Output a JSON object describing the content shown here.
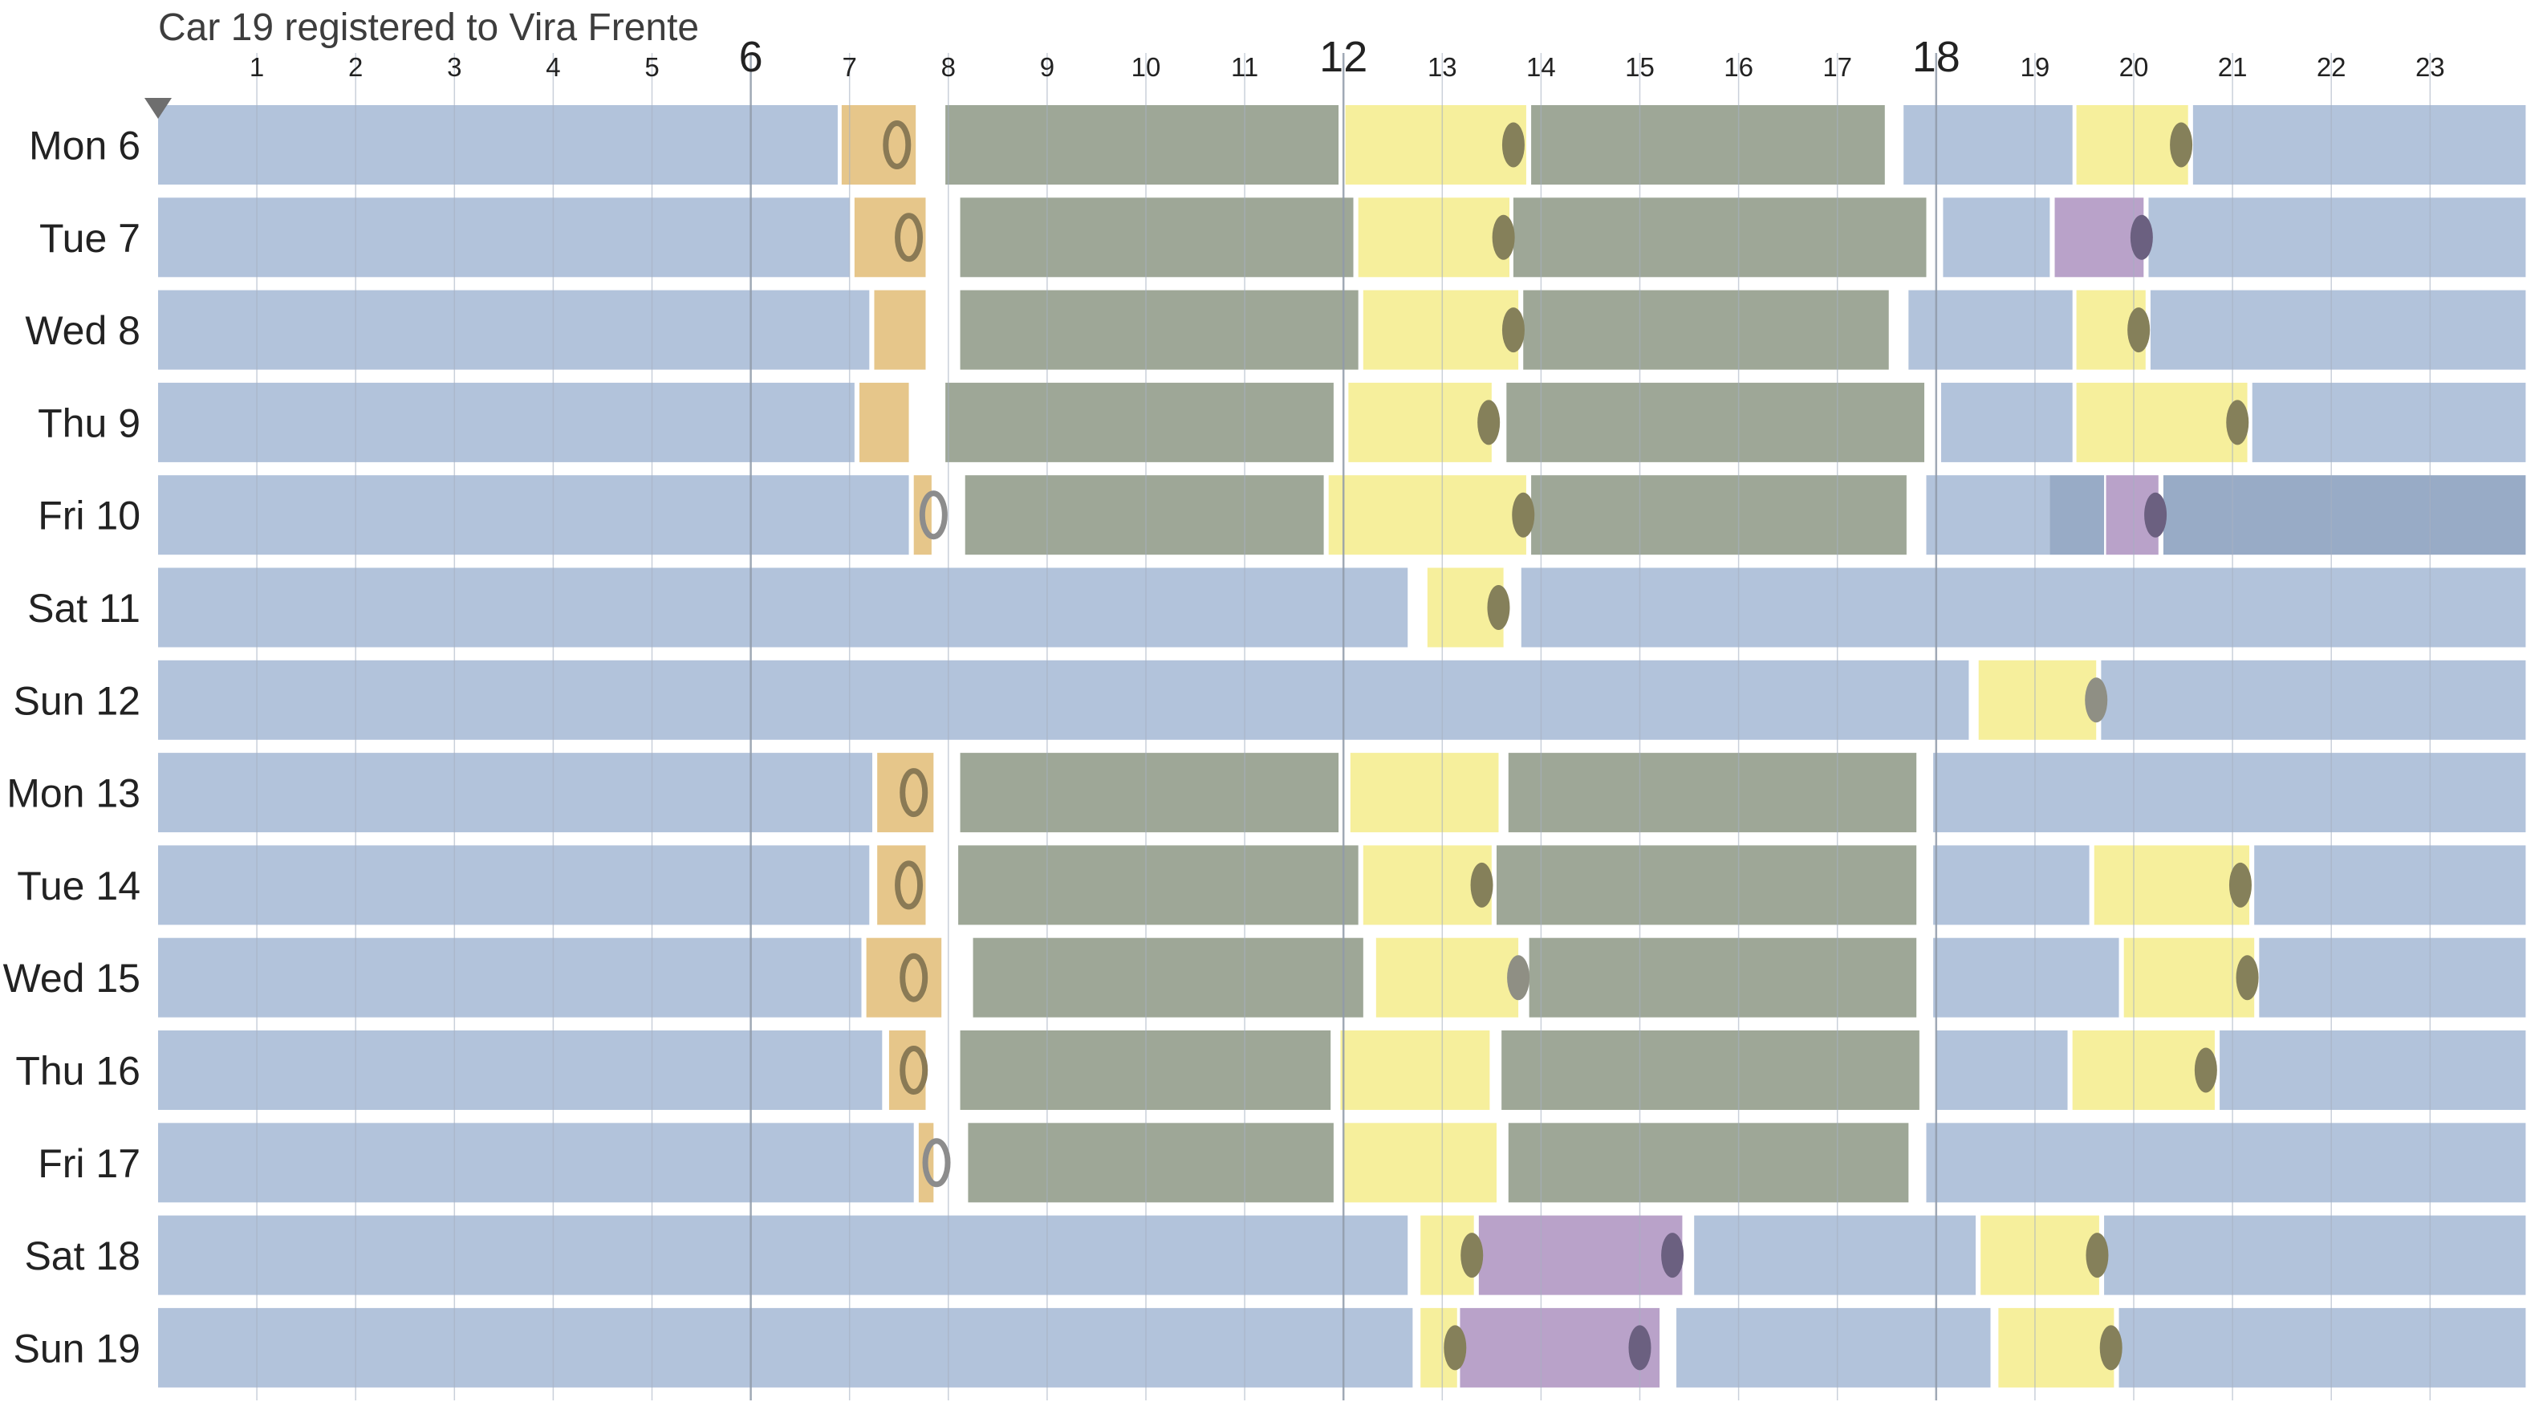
{
  "title": "Car 19 registered to Vira Frente",
  "chart_data": {
    "type": "timeline",
    "title": "Car 19 registered to Vira Frente",
    "x_range": [
      0,
      24
    ],
    "x_ticks": [
      {
        "value": 1,
        "label": "1",
        "major": false
      },
      {
        "value": 2,
        "label": "2",
        "major": false
      },
      {
        "value": 3,
        "label": "3",
        "major": false
      },
      {
        "value": 4,
        "label": "4",
        "major": false
      },
      {
        "value": 5,
        "label": "5",
        "major": false
      },
      {
        "value": 6,
        "label": "6",
        "major": true
      },
      {
        "value": 7,
        "label": "7",
        "major": false
      },
      {
        "value": 8,
        "label": "8",
        "major": false
      },
      {
        "value": 9,
        "label": "9",
        "major": false
      },
      {
        "value": 10,
        "label": "10",
        "major": false
      },
      {
        "value": 11,
        "label": "11",
        "major": false
      },
      {
        "value": 12,
        "label": "12",
        "major": true
      },
      {
        "value": 13,
        "label": "13",
        "major": false
      },
      {
        "value": 14,
        "label": "14",
        "major": false
      },
      {
        "value": 15,
        "label": "15",
        "major": false
      },
      {
        "value": 16,
        "label": "16",
        "major": false
      },
      {
        "value": 17,
        "label": "17",
        "major": false
      },
      {
        "value": 18,
        "label": "18",
        "major": true
      },
      {
        "value": 19,
        "label": "19",
        "major": false
      },
      {
        "value": 20,
        "label": "20",
        "major": false
      },
      {
        "value": 21,
        "label": "21",
        "major": false
      },
      {
        "value": 22,
        "label": "22",
        "major": false
      },
      {
        "value": 23,
        "label": "23",
        "major": false
      }
    ],
    "colors": {
      "home": "#b2c3db",
      "home_dark": "#98abc6",
      "commute": "#e6c68a",
      "work": "#9ea797",
      "lunch": "#f6ef9c",
      "purple": "#b9a2c9",
      "marker_outline": "#8a7a55",
      "marker_fill": "#85805a",
      "marker_fill_purple": "#6b6080"
    },
    "rows": [
      {
        "label": "Mon 6",
        "segments": [
          {
            "s": 0,
            "e": 6.88,
            "c": "home"
          },
          {
            "s": 6.92,
            "e": 7.67,
            "c": "commute"
          },
          {
            "s": 7.97,
            "e": 11.95,
            "c": "work"
          },
          {
            "s": 12.02,
            "e": 13.85,
            "c": "lunch"
          },
          {
            "s": 13.9,
            "e": 17.48,
            "c": "work"
          },
          {
            "s": 17.67,
            "e": 19.38,
            "c": "home"
          },
          {
            "s": 19.42,
            "e": 20.55,
            "c": "lunch"
          },
          {
            "s": 20.6,
            "e": 24,
            "c": "home"
          }
        ],
        "markers": [
          {
            "x": 7.48,
            "t": "ring"
          },
          {
            "x": 13.72,
            "t": "dot"
          },
          {
            "x": 20.48,
            "t": "dot"
          }
        ]
      },
      {
        "label": "Tue 7",
        "segments": [
          {
            "s": 0,
            "e": 7.0,
            "c": "home"
          },
          {
            "s": 7.05,
            "e": 7.77,
            "c": "commute"
          },
          {
            "s": 8.12,
            "e": 12.1,
            "c": "work"
          },
          {
            "s": 12.15,
            "e": 13.68,
            "c": "lunch"
          },
          {
            "s": 13.72,
            "e": 17.9,
            "c": "work"
          },
          {
            "s": 18.07,
            "e": 19.15,
            "c": "home"
          },
          {
            "s": 19.2,
            "e": 20.1,
            "c": "purple"
          },
          {
            "s": 20.15,
            "e": 24,
            "c": "home"
          }
        ],
        "markers": [
          {
            "x": 7.6,
            "t": "ring"
          },
          {
            "x": 13.62,
            "t": "dot"
          },
          {
            "x": 20.08,
            "t": "dotp"
          }
        ]
      },
      {
        "label": "Wed 8",
        "segments": [
          {
            "s": 0,
            "e": 7.2,
            "c": "home"
          },
          {
            "s": 7.25,
            "e": 7.77,
            "c": "commute"
          },
          {
            "s": 8.12,
            "e": 12.15,
            "c": "work"
          },
          {
            "s": 12.2,
            "e": 13.77,
            "c": "lunch"
          },
          {
            "s": 13.82,
            "e": 17.52,
            "c": "work"
          },
          {
            "s": 17.72,
            "e": 19.38,
            "c": "home"
          },
          {
            "s": 19.42,
            "e": 20.12,
            "c": "lunch"
          },
          {
            "s": 20.17,
            "e": 24,
            "c": "home"
          }
        ],
        "markers": [
          {
            "x": 13.72,
            "t": "dot"
          },
          {
            "x": 20.05,
            "t": "dot"
          }
        ]
      },
      {
        "label": "Thu 9",
        "segments": [
          {
            "s": 0,
            "e": 7.05,
            "c": "home"
          },
          {
            "s": 7.1,
            "e": 7.6,
            "c": "commute"
          },
          {
            "s": 7.97,
            "e": 11.9,
            "c": "work"
          },
          {
            "s": 12.05,
            "e": 13.5,
            "c": "lunch"
          },
          {
            "s": 13.65,
            "e": 17.88,
            "c": "work"
          },
          {
            "s": 18.05,
            "e": 19.38,
            "c": "home"
          },
          {
            "s": 19.42,
            "e": 21.15,
            "c": "lunch"
          },
          {
            "s": 21.2,
            "e": 24,
            "c": "home"
          }
        ],
        "markers": [
          {
            "x": 13.47,
            "t": "dot"
          },
          {
            "x": 21.05,
            "t": "dot"
          }
        ]
      },
      {
        "label": "Fri 10",
        "segments": [
          {
            "s": 0,
            "e": 7.6,
            "c": "home"
          },
          {
            "s": 7.65,
            "e": 7.83,
            "c": "commute"
          },
          {
            "s": 8.17,
            "e": 11.8,
            "c": "work"
          },
          {
            "s": 11.85,
            "e": 13.85,
            "c": "lunch"
          },
          {
            "s": 13.9,
            "e": 17.7,
            "c": "work"
          },
          {
            "s": 17.9,
            "e": 19.15,
            "c": "home"
          },
          {
            "s": 19.15,
            "e": 19.7,
            "c": "home_dark"
          },
          {
            "s": 19.72,
            "e": 20.25,
            "c": "purple"
          },
          {
            "s": 20.3,
            "e": 24,
            "c": "home_dark"
          }
        ],
        "markers": [
          {
            "x": 7.85,
            "t": "ringg"
          },
          {
            "x": 13.82,
            "t": "dot"
          },
          {
            "x": 20.22,
            "t": "dotp"
          }
        ]
      },
      {
        "label": "Sat 11",
        "segments": [
          {
            "s": 0,
            "e": 12.65,
            "c": "home"
          },
          {
            "s": 12.85,
            "e": 13.62,
            "c": "lunch"
          },
          {
            "s": 13.8,
            "e": 24,
            "c": "home"
          }
        ],
        "markers": [
          {
            "x": 13.57,
            "t": "dot"
          }
        ]
      },
      {
        "label": "Sun 12",
        "segments": [
          {
            "s": 0,
            "e": 18.33,
            "c": "home"
          },
          {
            "s": 18.43,
            "e": 19.62,
            "c": "lunch"
          },
          {
            "s": 19.67,
            "e": 24,
            "c": "home"
          }
        ],
        "markers": [
          {
            "x": 19.62,
            "t": "dotg"
          }
        ]
      },
      {
        "label": "Mon 13",
        "segments": [
          {
            "s": 0,
            "e": 7.23,
            "c": "home"
          },
          {
            "s": 7.28,
            "e": 7.85,
            "c": "commute"
          },
          {
            "s": 8.12,
            "e": 11.95,
            "c": "work"
          },
          {
            "s": 12.07,
            "e": 13.57,
            "c": "lunch"
          },
          {
            "s": 13.67,
            "e": 17.8,
            "c": "work"
          },
          {
            "s": 17.97,
            "e": 24,
            "c": "home"
          }
        ],
        "markers": [
          {
            "x": 7.65,
            "t": "ring"
          }
        ]
      },
      {
        "label": "Tue 14",
        "segments": [
          {
            "s": 0,
            "e": 7.2,
            "c": "home"
          },
          {
            "s": 7.28,
            "e": 7.77,
            "c": "commute"
          },
          {
            "s": 8.1,
            "e": 12.15,
            "c": "work"
          },
          {
            "s": 12.2,
            "e": 13.5,
            "c": "lunch"
          },
          {
            "s": 13.55,
            "e": 17.8,
            "c": "work"
          },
          {
            "s": 17.97,
            "e": 19.55,
            "c": "home"
          },
          {
            "s": 19.6,
            "e": 21.17,
            "c": "lunch"
          },
          {
            "s": 21.22,
            "e": 24,
            "c": "home"
          }
        ],
        "markers": [
          {
            "x": 7.6,
            "t": "ring"
          },
          {
            "x": 13.4,
            "t": "dot"
          },
          {
            "x": 21.08,
            "t": "dot"
          }
        ]
      },
      {
        "label": "Wed 15",
        "segments": [
          {
            "s": 0,
            "e": 7.12,
            "c": "home"
          },
          {
            "s": 7.17,
            "e": 7.93,
            "c": "commute"
          },
          {
            "s": 8.25,
            "e": 12.2,
            "c": "work"
          },
          {
            "s": 12.33,
            "e": 13.77,
            "c": "lunch"
          },
          {
            "s": 13.88,
            "e": 17.8,
            "c": "work"
          },
          {
            "s": 17.97,
            "e": 19.85,
            "c": "home"
          },
          {
            "s": 19.9,
            "e": 21.22,
            "c": "lunch"
          },
          {
            "s": 21.27,
            "e": 24,
            "c": "home"
          }
        ],
        "markers": [
          {
            "x": 7.65,
            "t": "ring"
          },
          {
            "x": 13.77,
            "t": "dotg"
          },
          {
            "x": 21.15,
            "t": "dot"
          }
        ]
      },
      {
        "label": "Thu 16",
        "segments": [
          {
            "s": 0,
            "e": 7.33,
            "c": "home"
          },
          {
            "s": 7.4,
            "e": 7.77,
            "c": "commute"
          },
          {
            "s": 8.12,
            "e": 11.87,
            "c": "work"
          },
          {
            "s": 11.97,
            "e": 13.48,
            "c": "lunch"
          },
          {
            "s": 13.6,
            "e": 17.83,
            "c": "work"
          },
          {
            "s": 18.0,
            "e": 19.33,
            "c": "home"
          },
          {
            "s": 19.38,
            "e": 20.82,
            "c": "lunch"
          },
          {
            "s": 20.87,
            "e": 24,
            "c": "home"
          }
        ],
        "markers": [
          {
            "x": 7.65,
            "t": "ring"
          },
          {
            "x": 20.73,
            "t": "dot"
          }
        ]
      },
      {
        "label": "Fri 17",
        "segments": [
          {
            "s": 0,
            "e": 7.65,
            "c": "home"
          },
          {
            "s": 7.7,
            "e": 7.85,
            "c": "commute"
          },
          {
            "s": 8.2,
            "e": 11.9,
            "c": "work"
          },
          {
            "s": 12.0,
            "e": 13.55,
            "c": "lunch"
          },
          {
            "s": 13.67,
            "e": 17.72,
            "c": "work"
          },
          {
            "s": 17.9,
            "e": 24,
            "c": "home"
          }
        ],
        "markers": [
          {
            "x": 7.88,
            "t": "ringg"
          }
        ]
      },
      {
        "label": "Sat 18",
        "segments": [
          {
            "s": 0,
            "e": 12.65,
            "c": "home"
          },
          {
            "s": 12.78,
            "e": 13.32,
            "c": "lunch"
          },
          {
            "s": 13.37,
            "e": 15.43,
            "c": "purple"
          },
          {
            "s": 15.55,
            "e": 18.4,
            "c": "home"
          },
          {
            "s": 18.45,
            "e": 19.65,
            "c": "lunch"
          },
          {
            "s": 19.7,
            "e": 24,
            "c": "home"
          }
        ],
        "markers": [
          {
            "x": 13.3,
            "t": "dot"
          },
          {
            "x": 15.33,
            "t": "dotp"
          },
          {
            "x": 19.63,
            "t": "dot"
          }
        ]
      },
      {
        "label": "Sun 19",
        "segments": [
          {
            "s": 0,
            "e": 12.7,
            "c": "home"
          },
          {
            "s": 12.78,
            "e": 13.15,
            "c": "lunch"
          },
          {
            "s": 13.18,
            "e": 15.2,
            "c": "purple"
          },
          {
            "s": 15.37,
            "e": 18.55,
            "c": "home"
          },
          {
            "s": 18.63,
            "e": 19.8,
            "c": "lunch"
          },
          {
            "s": 19.85,
            "e": 24,
            "c": "home"
          }
        ],
        "markers": [
          {
            "x": 13.13,
            "t": "dot"
          },
          {
            "x": 15.0,
            "t": "dotp"
          },
          {
            "x": 19.77,
            "t": "dot"
          }
        ]
      }
    ]
  }
}
